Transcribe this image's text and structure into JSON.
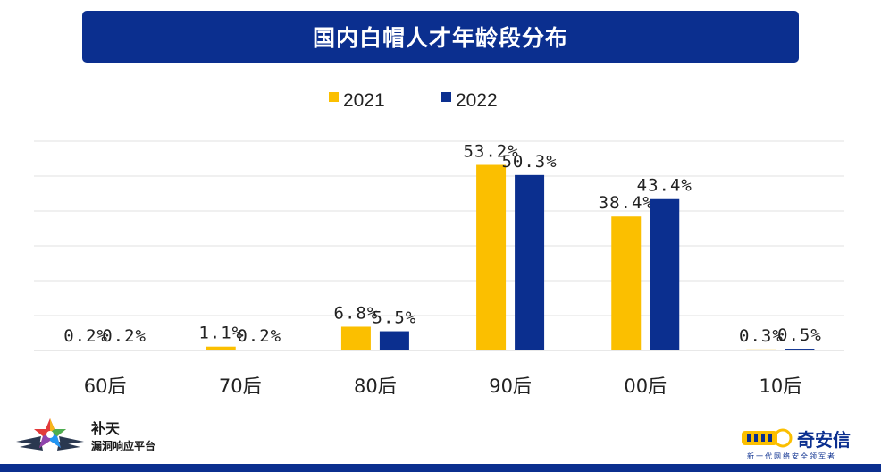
{
  "chart_data": {
    "type": "bar",
    "title": "国内白帽人才年龄段分布",
    "categories": [
      "60后",
      "70后",
      "80后",
      "90后",
      "00后",
      "10后"
    ],
    "series": [
      {
        "name": "2021",
        "values": [
          0.2,
          1.1,
          6.8,
          53.2,
          38.4,
          0.3
        ],
        "labels": [
          "0.2%",
          "1.1%",
          "6.8%",
          "53.2%",
          "38.4%",
          "0.3%"
        ],
        "color": "#fbbf00"
      },
      {
        "name": "2022",
        "values": [
          0.2,
          0.2,
          5.5,
          50.3,
          43.4,
          0.5
        ],
        "labels": [
          "0.2%",
          "0.2%",
          "5.5%",
          "50.3%",
          "43.4%",
          "0.5%"
        ],
        "color": "#0b2f8f"
      }
    ],
    "ylim": [
      0,
      60
    ],
    "grid": true,
    "legend_position": "top"
  },
  "branding": {
    "left_name": "补天",
    "left_sub": "漏洞响应平台",
    "right_name": "奇安信",
    "right_sub": "新一代网络安全领军者"
  },
  "colors": {
    "banner": "#0b2f8f",
    "gold": "#fbbf00",
    "navy": "#0b2f8f"
  }
}
